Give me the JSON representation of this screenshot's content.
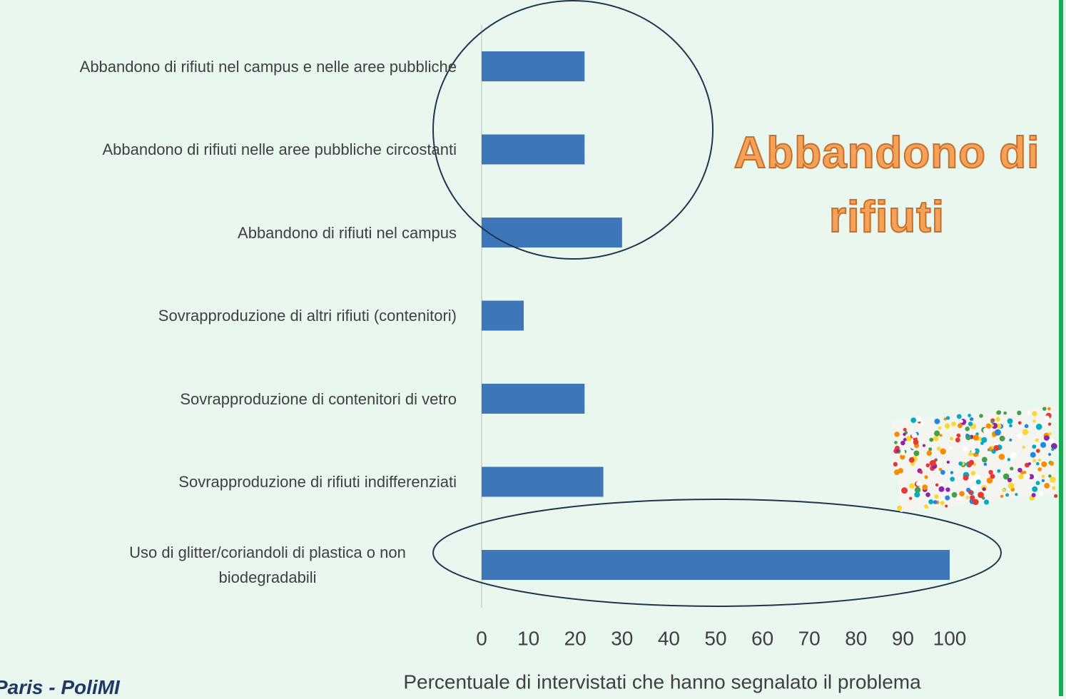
{
  "chart_data": {
    "type": "bar",
    "orientation": "horizontal",
    "categories": [
      "Abbandono di rifiuti nel campus e nelle aree pubbliche",
      "Abbandono di rifiuti nelle aree pubbliche circostanti",
      "Abbandono di rifiuti nel campus",
      "Sovrapproduzione di altri rifiuti (contenitori)",
      "Sovrapproduzione di contenitori di vetro",
      "Sovrapproduzione di rifiuti indifferenziati",
      "Uso di glitter/coriandoli di plastica o non biodegradabili"
    ],
    "values": [
      22,
      22,
      30,
      9,
      22,
      26,
      100
    ],
    "color": "#3e77b9",
    "xlim": [
      0,
      100
    ],
    "xticks": [
      0,
      10,
      20,
      30,
      40,
      50,
      60,
      70,
      80,
      90,
      100
    ],
    "x_label": "Percentuale di intervistati che hanno segnalato il problema",
    "annotation": "Abbandono di rifiuti"
  },
  "footer": "Paris - PoliMI"
}
